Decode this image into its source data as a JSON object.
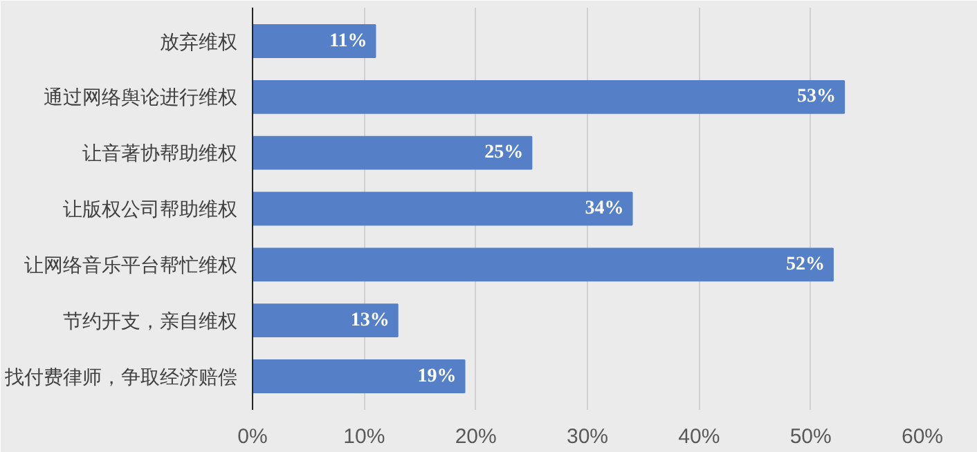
{
  "chart_data": {
    "type": "bar",
    "orientation": "horizontal",
    "categories": [
      "放弃维权",
      "通过网络舆论进行维权",
      "让音著协帮助维权",
      "让版权公司帮助维权",
      "让网络音乐平台帮忙维权",
      "节约开支，亲自维权",
      "找付费律师，争取经济赔偿"
    ],
    "values": [
      11,
      53,
      25,
      34,
      52,
      13,
      19
    ],
    "value_labels": [
      "11%",
      "53%",
      "25%",
      "34%",
      "52%",
      "13%",
      "19%"
    ],
    "color": "#5580c8",
    "xlim": [
      0,
      60
    ],
    "xticks": [
      {
        "value": 0,
        "label": "0%"
      },
      {
        "value": 10,
        "label": "10%"
      },
      {
        "value": 20,
        "label": "20%"
      },
      {
        "value": 30,
        "label": "30%"
      },
      {
        "value": 40,
        "label": "40%"
      },
      {
        "value": 50,
        "label": "50%"
      },
      {
        "value": 60,
        "label": "60%"
      }
    ],
    "grid": "x"
  }
}
